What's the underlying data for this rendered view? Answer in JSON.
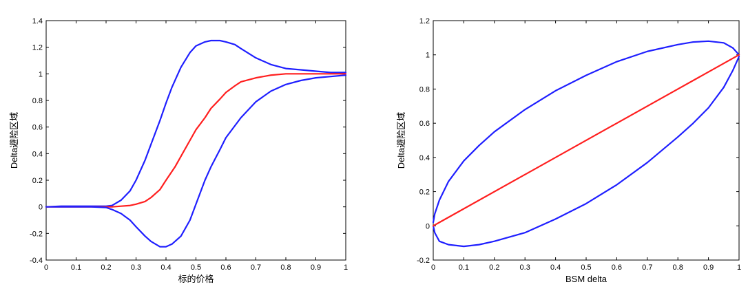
{
  "colors": {
    "band": "#1f1fff",
    "center": "#ff1f1f",
    "axis": "#000000"
  },
  "chart_data": [
    {
      "type": "line",
      "title": "",
      "xlabel": "标的价格",
      "ylabel": "Delta避险区域",
      "xlim": [
        0,
        1
      ],
      "ylim": [
        -0.4,
        1.4
      ],
      "xticks": [
        0,
        0.1,
        0.2,
        0.3,
        0.4,
        0.5,
        0.6,
        0.7,
        0.8,
        0.9,
        1
      ],
      "yticks": [
        -0.4,
        -0.2,
        0,
        0.2,
        0.4,
        0.6,
        0.8,
        1,
        1.2,
        1.4
      ],
      "grid": false,
      "series": [
        {
          "color": "#1f1fff",
          "x": [
            0,
            0.05,
            0.1,
            0.15,
            0.2,
            0.22,
            0.25,
            0.28,
            0.3,
            0.33,
            0.35,
            0.38,
            0.4,
            0.42,
            0.45,
            0.48,
            0.5,
            0.53,
            0.55,
            0.58,
            0.6,
            0.63,
            0.65,
            0.7,
            0.75,
            0.8,
            0.85,
            0.9,
            0.95,
            1
          ],
          "y": [
            0,
            0.005,
            0.005,
            0.005,
            0.005,
            0.01,
            0.05,
            0.12,
            0.2,
            0.35,
            0.47,
            0.65,
            0.78,
            0.9,
            1.05,
            1.16,
            1.21,
            1.24,
            1.25,
            1.25,
            1.24,
            1.22,
            1.19,
            1.12,
            1.07,
            1.04,
            1.03,
            1.02,
            1.01,
            1.01
          ]
        },
        {
          "color": "#ff1f1f",
          "x": [
            0,
            0.1,
            0.2,
            0.22,
            0.25,
            0.28,
            0.3,
            0.33,
            0.35,
            0.38,
            0.4,
            0.43,
            0.45,
            0.48,
            0.5,
            0.53,
            0.55,
            0.58,
            0.6,
            0.63,
            0.65,
            0.7,
            0.75,
            0.8,
            0.85,
            0.9,
            0.95,
            1
          ],
          "y": [
            0,
            0,
            0,
            0,
            0.005,
            0.01,
            0.02,
            0.04,
            0.07,
            0.13,
            0.2,
            0.3,
            0.38,
            0.5,
            0.58,
            0.67,
            0.74,
            0.81,
            0.86,
            0.91,
            0.94,
            0.97,
            0.99,
            1,
            1,
            1,
            1,
            1
          ]
        },
        {
          "color": "#1f1fff",
          "x": [
            0,
            0.05,
            0.1,
            0.15,
            0.2,
            0.22,
            0.25,
            0.28,
            0.3,
            0.33,
            0.35,
            0.38,
            0.4,
            0.42,
            0.45,
            0.48,
            0.5,
            0.53,
            0.55,
            0.58,
            0.6,
            0.65,
            0.7,
            0.75,
            0.8,
            0.85,
            0.9,
            0.95,
            1
          ],
          "y": [
            0,
            0,
            0,
            0,
            -0.005,
            -0.02,
            -0.05,
            -0.1,
            -0.15,
            -0.22,
            -0.26,
            -0.3,
            -0.3,
            -0.28,
            -0.22,
            -0.1,
            0.02,
            0.2,
            0.3,
            0.43,
            0.52,
            0.67,
            0.79,
            0.87,
            0.92,
            0.95,
            0.97,
            0.98,
            0.99
          ]
        }
      ]
    },
    {
      "type": "line",
      "title": "",
      "xlabel": "BSM delta",
      "ylabel": "Delta避险区域",
      "xlim": [
        0,
        1
      ],
      "ylim": [
        -0.2,
        1.2
      ],
      "xticks": [
        0,
        0.1,
        0.2,
        0.3,
        0.4,
        0.5,
        0.6,
        0.7,
        0.8,
        0.9,
        1
      ],
      "yticks": [
        -0.2,
        0,
        0.2,
        0.4,
        0.6,
        0.8,
        1,
        1.2
      ],
      "grid": false,
      "series": [
        {
          "color": "#1f1fff",
          "x": [
            0,
            0.005,
            0.02,
            0.05,
            0.1,
            0.15,
            0.2,
            0.3,
            0.4,
            0.5,
            0.6,
            0.7,
            0.8,
            0.85,
            0.9,
            0.95,
            0.98,
            1
          ],
          "y": [
            0.02,
            0.07,
            0.15,
            0.26,
            0.38,
            0.47,
            0.55,
            0.68,
            0.79,
            0.88,
            0.96,
            1.02,
            1.06,
            1.075,
            1.08,
            1.07,
            1.04,
            1.0
          ]
        },
        {
          "color": "#1f1fff",
          "x": [
            0,
            0.005,
            0.02,
            0.05,
            0.1,
            0.15,
            0.2,
            0.3,
            0.4,
            0.5,
            0.6,
            0.7,
            0.8,
            0.85,
            0.9,
            0.95,
            0.98,
            1
          ],
          "y": [
            0,
            -0.04,
            -0.09,
            -0.11,
            -0.12,
            -0.11,
            -0.09,
            -0.04,
            0.04,
            0.13,
            0.24,
            0.37,
            0.52,
            0.6,
            0.69,
            0.81,
            0.91,
            0.99
          ]
        },
        {
          "color": "#ff1f1f",
          "x": [
            0,
            1
          ],
          "y": [
            0,
            1
          ]
        }
      ]
    }
  ]
}
